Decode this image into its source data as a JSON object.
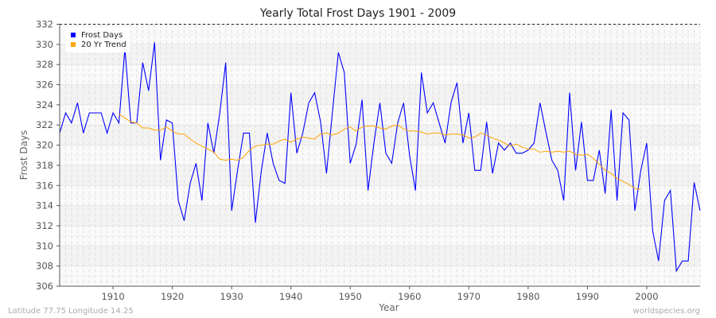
{
  "chart_data": {
    "type": "line",
    "title": "Yearly Total Frost Days 1901 - 2009",
    "xlabel": "Year",
    "ylabel": "Frost Days",
    "xlim": [
      1901,
      2009
    ],
    "ylim": [
      306,
      332
    ],
    "xticks": [
      1910,
      1920,
      1930,
      1940,
      1950,
      1960,
      1970,
      1980,
      1990,
      2000
    ],
    "yticks": [
      306,
      308,
      310,
      312,
      314,
      316,
      318,
      320,
      322,
      324,
      326,
      328,
      330,
      332
    ],
    "grid": true,
    "legend_position": "top-left",
    "series": [
      {
        "name": "Frost Days",
        "color": "#0000ff",
        "x_start": 1901,
        "values": [
          321.2,
          323.2,
          322.2,
          324.2,
          321.2,
          323.2,
          323.2,
          323.2,
          321.2,
          323.2,
          322.2,
          329.6,
          322.2,
          322.2,
          328.2,
          325.4,
          330.2,
          318.5,
          322.5,
          322.2,
          314.5,
          312.5,
          316.2,
          318.2,
          314.5,
          322.2,
          319.2,
          323.2,
          328.2,
          313.5,
          317.5,
          321.2,
          321.2,
          312.3,
          317.4,
          321.2,
          318.2,
          316.5,
          316.2,
          325.2,
          319.2,
          321.2,
          324.2,
          325.2,
          322.3,
          317.2,
          323.3,
          329.2,
          327.2,
          318.2,
          320.1,
          324.5,
          315.5,
          320.2,
          324.2,
          319.2,
          318.2,
          322.2,
          324.2,
          319.0,
          315.5,
          327.2,
          323.2,
          324.2,
          322.2,
          320.2,
          324.2,
          326.2,
          320.2,
          323.2,
          317.5,
          317.5,
          322.3,
          317.2,
          320.2,
          319.5,
          320.2,
          319.2,
          319.2,
          319.5,
          320.2,
          324.2,
          321.3,
          318.5,
          317.5,
          314.5,
          325.2,
          317.5,
          322.3,
          316.5,
          316.5,
          319.5,
          315.2,
          323.5,
          314.5,
          323.2,
          322.5,
          313.5,
          317.5,
          320.2,
          311.5,
          308.5,
          314.5,
          315.5,
          307.5,
          308.5,
          308.5,
          316.3,
          313.5
        ]
      },
      {
        "name": "20 Yr Trend",
        "color": "#ffa500",
        "x_start": 1911,
        "values": [
          323.1,
          322.7,
          322.3,
          322.2,
          321.7,
          321.7,
          321.5,
          321.5,
          321.8,
          321.4,
          321.1,
          321.1,
          320.6,
          320.2,
          319.9,
          319.6,
          319.3,
          318.6,
          318.5,
          318.6,
          318.5,
          318.8,
          319.5,
          319.9,
          320.0,
          320.1,
          320.1,
          320.4,
          320.6,
          320.3,
          320.6,
          320.8,
          320.7,
          320.6,
          321.1,
          321.2,
          321.0,
          321.2,
          321.6,
          321.8,
          321.4,
          321.8,
          321.9,
          321.9,
          321.7,
          321.6,
          321.9,
          322.0,
          321.6,
          321.4,
          321.4,
          321.3,
          321.1,
          321.2,
          321.2,
          321.0,
          321.1,
          321.1,
          321.0,
          320.7,
          320.8,
          321.2,
          321.0,
          320.7,
          320.5,
          320.2,
          319.9,
          320.1,
          319.8,
          319.6,
          319.6,
          319.3,
          319.4,
          319.3,
          319.4,
          319.3,
          319.4,
          319.1,
          319.0,
          319.1,
          318.7,
          318.1,
          317.5,
          317.2,
          316.7,
          316.4,
          316.1,
          315.7,
          315.6
        ]
      }
    ]
  },
  "footer": {
    "coords": "Latitude 77.75 Longitude 14.25",
    "site": "worldspecies.org"
  }
}
